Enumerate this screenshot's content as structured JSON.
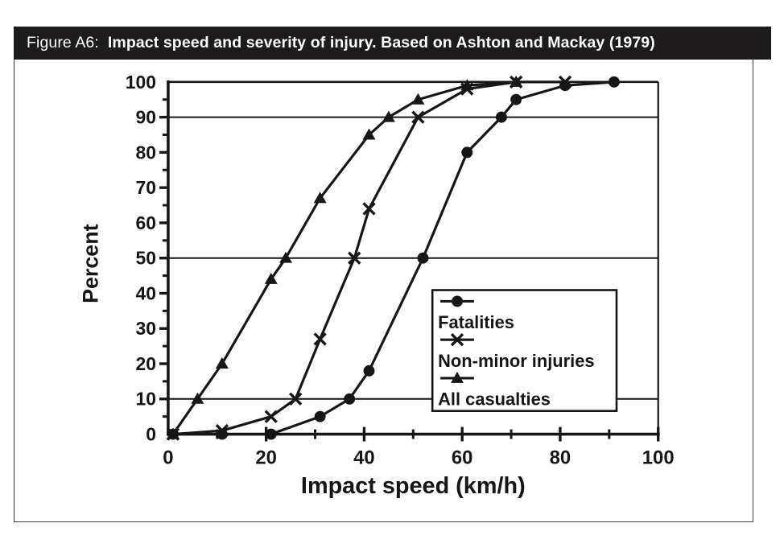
{
  "figure": {
    "label": "Figure A6:",
    "title": "Impact speed and severity of injury. Based on Ashton and Mackay (1979)"
  },
  "colors": {
    "title_bar_bg": "#1d1b1c",
    "title_text": "#ffffff",
    "line": "#161616",
    "panel_border": "#3c3c3c",
    "background": "#ffffff"
  },
  "chart_data": {
    "type": "line",
    "xlabel": "Impact speed (km/h)",
    "ylabel": "Percent",
    "xlim": [
      0,
      100
    ],
    "ylim": [
      0,
      100
    ],
    "x_major_ticks": [
      0,
      20,
      40,
      60,
      80,
      100
    ],
    "x_minor_tick_step": 10,
    "y_major_ticks": [
      0,
      10,
      20,
      30,
      40,
      50,
      60,
      70,
      80,
      90,
      100
    ],
    "y_minor_tick_step": 5,
    "gridlines_y": [
      10,
      50,
      90
    ],
    "grid": "horizontal only",
    "legend_position": "inside lower-right",
    "legend_entries": [
      "Fatalities",
      "Non-minor injuries",
      "All casualties"
    ],
    "series": [
      {
        "name": "Fatalities",
        "marker": "circle",
        "points": [
          [
            1,
            0
          ],
          [
            11,
            0
          ],
          [
            21,
            0
          ],
          [
            31,
            5
          ],
          [
            37,
            10
          ],
          [
            41,
            18
          ],
          [
            52,
            50
          ],
          [
            61,
            80
          ],
          [
            68,
            90
          ],
          [
            71,
            95
          ],
          [
            81,
            99
          ],
          [
            91,
            100
          ]
        ]
      },
      {
        "name": "Non-minor injuries",
        "marker": "x",
        "points": [
          [
            1,
            0
          ],
          [
            11,
            1
          ],
          [
            21,
            5
          ],
          [
            26,
            10
          ],
          [
            31,
            27
          ],
          [
            38,
            50
          ],
          [
            41,
            64
          ],
          [
            51,
            90
          ],
          [
            61,
            98
          ],
          [
            71,
            100
          ],
          [
            81,
            100
          ]
        ]
      },
      {
        "name": "All casualties",
        "marker": "triangle",
        "points": [
          [
            1,
            0
          ],
          [
            6,
            10
          ],
          [
            11,
            20
          ],
          [
            21,
            44
          ],
          [
            24,
            50
          ],
          [
            31,
            67
          ],
          [
            41,
            85
          ],
          [
            45,
            90
          ],
          [
            51,
            95
          ],
          [
            61,
            99
          ],
          [
            71,
            100
          ]
        ]
      }
    ]
  }
}
